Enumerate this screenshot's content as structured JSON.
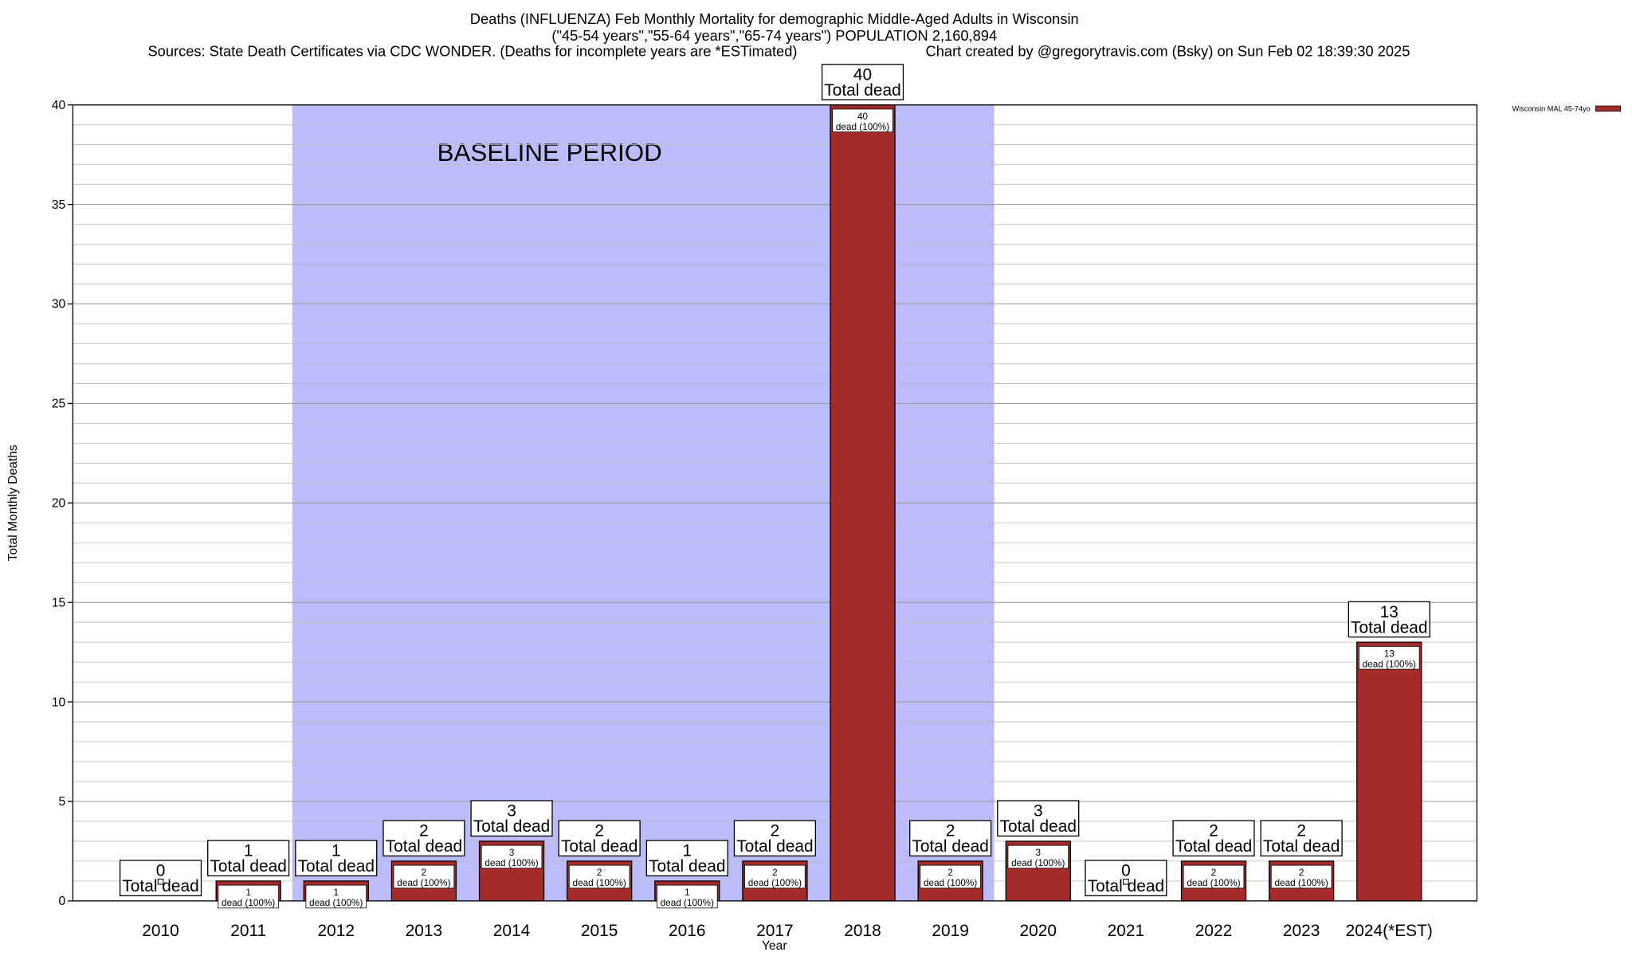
{
  "chart_data": {
    "type": "bar",
    "title": "Deaths (INFLUENZA) Feb Monthly Mortality for demographic Middle-Aged Adults in Wisconsin",
    "subtitle": "(\"45-54 years\",\"55-64 years\",\"65-74 years\") POPULATION 2,160,894",
    "sources": "Sources: State Death Certificates via CDC WONDER. (Deaths for incomplete years are *ESTimated)",
    "credit": "Chart created by @gregorytravis.com (Bsky) on Sun Feb 02 18:39:30 2025",
    "x_label": "Year",
    "y_label": "Total Monthly Deaths",
    "categories": [
      "2010",
      "2011",
      "2012",
      "2013",
      "2014",
      "2015",
      "2016",
      "2017",
      "2018",
      "2019",
      "2020",
      "2021",
      "2022",
      "2023",
      "2024(*EST)"
    ],
    "series": [
      {
        "name": "Wisconsin MAL 45-74yo",
        "color": "#a52a2a",
        "values": [
          0,
          1,
          1,
          2,
          3,
          2,
          1,
          2,
          40,
          2,
          3,
          0,
          2,
          2,
          13
        ]
      }
    ],
    "total_label": "Total dead",
    "segment_label": "dead (100%)",
    "baseline": {
      "label": "BASELINE PERIOD",
      "start": "2012",
      "end": "2019",
      "color": "#bcbcfa"
    },
    "ylim": [
      0,
      40
    ],
    "yticks": [
      0,
      5,
      10,
      15,
      20,
      25,
      30,
      35,
      40
    ],
    "grid_step": 1,
    "grid": true,
    "legend": "top-right"
  }
}
